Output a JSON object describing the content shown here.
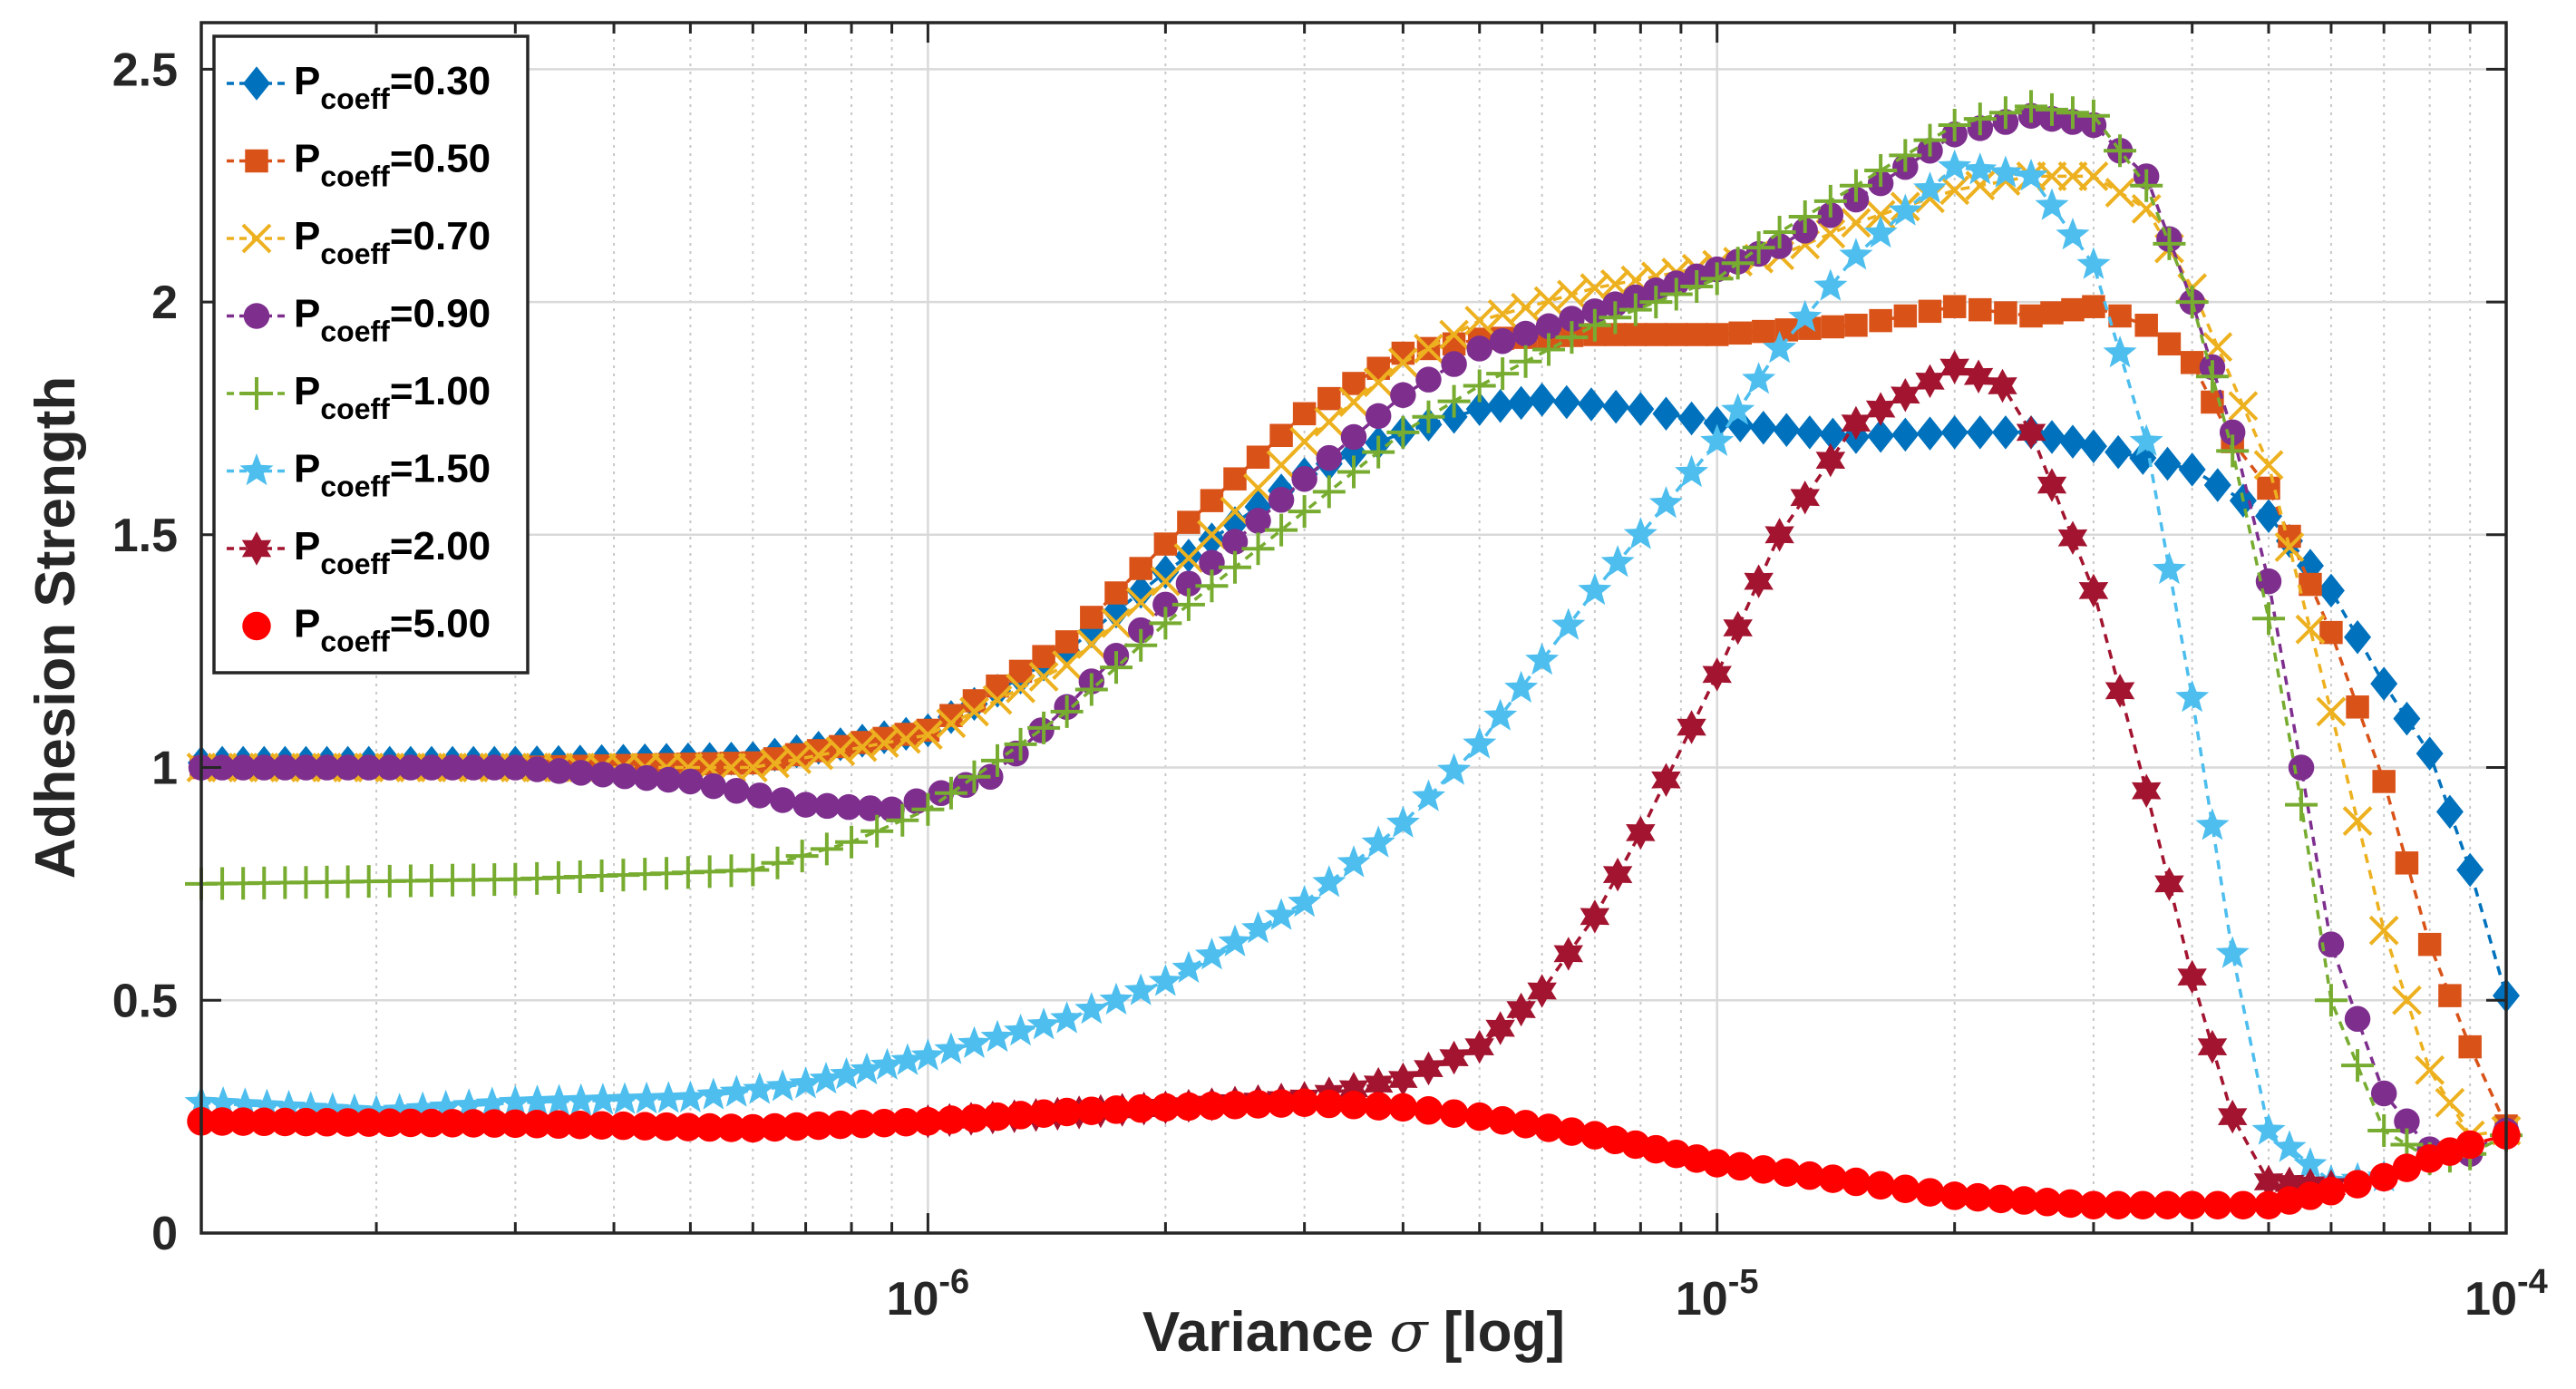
{
  "chart_data": {
    "type": "scatter",
    "title": "",
    "xlabel_prefix": "Variance ",
    "xlabel_symbol": "σ",
    "xlabel_suffix": " [log]",
    "ylabel": "Adhesion Strength",
    "xscale": "log",
    "xlim": [
      1.2e-07,
      0.0001
    ],
    "ylim": [
      0,
      2.6
    ],
    "x_ticks": [
      {
        "value": 1e-06,
        "base": "10",
        "exp": "-6"
      },
      {
        "value": 1e-05,
        "base": "10",
        "exp": "-5"
      },
      {
        "value": 0.0001,
        "base": "10",
        "exp": "-4"
      }
    ],
    "y_ticks": [
      {
        "value": 0,
        "label": "0"
      },
      {
        "value": 0.5,
        "label": "0.5"
      },
      {
        "value": 1,
        "label": "1"
      },
      {
        "value": 1.5,
        "label": "1.5"
      },
      {
        "value": 2,
        "label": "2"
      },
      {
        "value": 2.5,
        "label": "2.5"
      }
    ],
    "grid": true,
    "legend_position": "top-left",
    "series": [
      {
        "name": "Pcoeff=0.30",
        "label_main": "P",
        "label_sub": "coeff",
        "label_value": "=0.30",
        "color": "#0072BD",
        "marker": "diamond",
        "x": [
          1.2e-07,
          3e-07,
          6e-07,
          1e-06,
          1.5e-06,
          2e-06,
          3e-06,
          4e-06,
          5e-06,
          6e-06,
          8e-06,
          1e-05,
          1.5e-05,
          2e-05,
          2.5e-05,
          3e-05,
          4e-05,
          5e-05,
          6e-05,
          7e-05,
          8e-05,
          9e-05,
          0.0001
        ],
        "y": [
          1.01,
          1.01,
          1.02,
          1.08,
          1.25,
          1.42,
          1.63,
          1.72,
          1.77,
          1.79,
          1.77,
          1.74,
          1.71,
          1.72,
          1.72,
          1.69,
          1.64,
          1.54,
          1.38,
          1.18,
          1.03,
          0.78,
          0.51
        ]
      },
      {
        "name": "Pcoeff=0.50",
        "label_main": "P",
        "label_sub": "coeff",
        "label_value": "=0.50",
        "color": "#D95319",
        "marker": "square",
        "x": [
          1.2e-07,
          3e-07,
          6e-07,
          1e-06,
          1.5e-06,
          2e-06,
          3e-06,
          4e-06,
          5e-06,
          7e-06,
          1e-05,
          1.5e-05,
          2e-05,
          2.5e-05,
          3e-05,
          3.5e-05,
          4e-05,
          4.5e-05,
          5e-05,
          6e-05,
          7e-05,
          8e-05,
          9e-05,
          0.0001
        ],
        "y": [
          1.0,
          1.0,
          1.01,
          1.08,
          1.27,
          1.48,
          1.76,
          1.89,
          1.92,
          1.93,
          1.93,
          1.95,
          1.99,
          1.97,
          1.99,
          1.95,
          1.87,
          1.7,
          1.6,
          1.29,
          0.97,
          0.62,
          0.4,
          0.23
        ]
      },
      {
        "name": "Pcoeff=0.70",
        "label_main": "P",
        "label_sub": "coeff",
        "label_value": "=0.70",
        "color": "#EDB120",
        "marker": "x",
        "x": [
          1.2e-07,
          3e-07,
          6e-07,
          1e-06,
          1.5e-06,
          2e-06,
          3e-06,
          4e-06,
          5e-06,
          7e-06,
          1e-05,
          1.2e-05,
          1.5e-05,
          2e-05,
          2.5e-05,
          3e-05,
          3.5e-05,
          4e-05,
          5e-05,
          6e-05,
          7e-05,
          8e-05,
          9e-05,
          0.0001
        ],
        "y": [
          1.0,
          1.0,
          1.0,
          1.07,
          1.22,
          1.4,
          1.7,
          1.87,
          1.96,
          2.03,
          2.08,
          2.1,
          2.17,
          2.24,
          2.27,
          2.27,
          2.2,
          2.03,
          1.65,
          1.12,
          0.65,
          0.35,
          0.21,
          0.22
        ]
      },
      {
        "name": "Pcoeff=0.90",
        "label_main": "P",
        "label_sub": "coeff",
        "label_value": "=0.90",
        "color": "#7E2F8E",
        "marker": "circle",
        "x": [
          1.2e-07,
          3e-07,
          5e-07,
          7e-07,
          9e-07,
          1.2e-06,
          1.5e-06,
          2e-06,
          3e-06,
          4e-06,
          5e-06,
          7e-06,
          1e-05,
          1.2e-05,
          1.5e-05,
          2e-05,
          2.5e-05,
          3e-05,
          3.5e-05,
          4e-05,
          4.5e-05,
          5e-05,
          5.5e-05,
          6e-05,
          7e-05,
          8e-05,
          9e-05,
          0.0001
        ],
        "y": [
          1.0,
          1.0,
          0.97,
          0.92,
          0.91,
          0.98,
          1.13,
          1.35,
          1.62,
          1.8,
          1.9,
          1.98,
          2.07,
          2.12,
          2.22,
          2.36,
          2.4,
          2.38,
          2.27,
          2.0,
          1.72,
          1.4,
          1.0,
          0.62,
          0.3,
          0.18,
          0.17,
          0.22
        ]
      },
      {
        "name": "Pcoeff=1.00",
        "label_main": "P",
        "label_sub": "coeff",
        "label_value": "=1.00",
        "color": "#77AC30",
        "marker": "plus",
        "x": [
          1.2e-07,
          3e-07,
          6e-07,
          8e-07,
          1e-06,
          1.5e-06,
          2e-06,
          3e-06,
          4e-06,
          5e-06,
          7e-06,
          1e-05,
          1.2e-05,
          1.5e-05,
          2e-05,
          2.5e-05,
          3e-05,
          3.5e-05,
          4e-05,
          4.5e-05,
          5e-05,
          5.5e-05,
          6e-05,
          7e-05,
          8e-05,
          9e-05,
          0.0001
        ],
        "y": [
          0.75,
          0.76,
          0.78,
          0.84,
          0.91,
          1.12,
          1.31,
          1.55,
          1.72,
          1.82,
          1.95,
          2.05,
          2.15,
          2.25,
          2.38,
          2.42,
          2.4,
          2.25,
          2.0,
          1.68,
          1.32,
          0.92,
          0.5,
          0.22,
          0.16,
          0.17,
          0.21
        ]
      },
      {
        "name": "Pcoeff=1.50",
        "label_main": "P",
        "label_sub": "coeff",
        "label_value": "=1.50",
        "color": "#4DBEEE",
        "marker": "star",
        "x": [
          1.2e-07,
          2e-07,
          3e-07,
          5e-07,
          7e-07,
          1e-06,
          1.5e-06,
          2e-06,
          3e-06,
          4e-06,
          5e-06,
          6e-06,
          7e-06,
          8e-06,
          1e-05,
          1.2e-05,
          1.5e-05,
          2e-05,
          2.5e-05,
          3e-05,
          3.5e-05,
          4e-05,
          4.5e-05,
          5e-05,
          6e-05,
          7e-05
        ],
        "y": [
          0.28,
          0.26,
          0.28,
          0.29,
          0.32,
          0.38,
          0.46,
          0.54,
          0.71,
          0.88,
          1.05,
          1.23,
          1.38,
          1.5,
          1.7,
          1.9,
          2.1,
          2.29,
          2.27,
          2.08,
          1.7,
          1.15,
          0.6,
          0.22,
          0.11,
          0.12
        ]
      },
      {
        "name": "Pcoeff=2.00",
        "label_main": "P",
        "label_sub": "coeff",
        "label_value": "=2.00",
        "color": "#A2142F",
        "marker": "hexagram",
        "x": [
          1e-06,
          2e-06,
          3e-06,
          4e-06,
          5e-06,
          6e-06,
          7e-06,
          8e-06,
          1e-05,
          1.2e-05,
          1.5e-05,
          2e-05,
          2.3e-05,
          2.5e-05,
          3e-05,
          3.5e-05,
          4e-05,
          4.5e-05,
          5e-05,
          6e-05
        ],
        "y": [
          0.24,
          0.27,
          0.29,
          0.33,
          0.4,
          0.52,
          0.68,
          0.86,
          1.2,
          1.5,
          1.74,
          1.86,
          1.82,
          1.72,
          1.38,
          0.95,
          0.55,
          0.25,
          0.11,
          0.1
        ]
      },
      {
        "name": "Pcoeff=5.00",
        "label_main": "P",
        "label_sub": "coeff",
        "label_value": "=5.00",
        "color": "#FF0000",
        "marker": "circle-filled",
        "x": [
          1.2e-07,
          3e-07,
          6e-07,
          1e-06,
          1.5e-06,
          2e-06,
          3e-06,
          4e-06,
          5e-06,
          7e-06,
          1e-05,
          1.5e-05,
          2e-05,
          3e-05,
          4e-05,
          5e-05,
          6e-05,
          7e-05,
          8e-05,
          9e-05,
          0.0001
        ],
        "y": [
          0.24,
          0.235,
          0.225,
          0.24,
          0.26,
          0.27,
          0.28,
          0.27,
          0.25,
          0.21,
          0.15,
          0.11,
          0.08,
          0.06,
          0.06,
          0.06,
          0.09,
          0.12,
          0.16,
          0.19,
          0.21
        ]
      }
    ]
  }
}
